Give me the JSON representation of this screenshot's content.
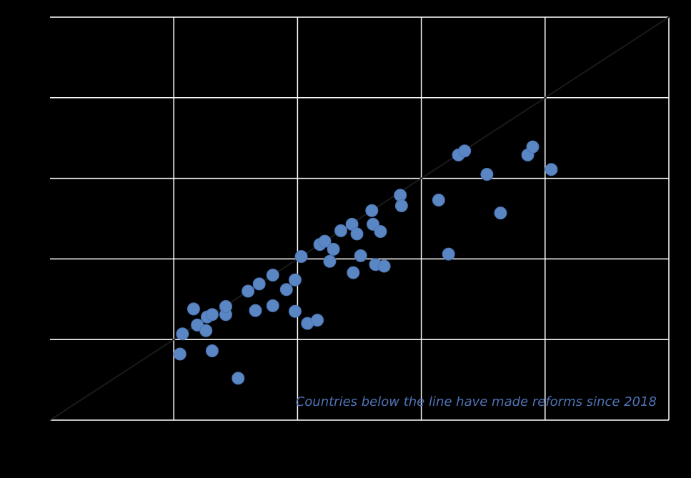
{
  "colors": {
    "background": "#000000",
    "grid": "#ffffff",
    "diagonal": "#1a1a1a",
    "point": "#5b86c4",
    "point_stroke": "#4a74b3",
    "annotation": "#4f72b5"
  },
  "chart_data": {
    "type": "scatter",
    "title": "",
    "xlabel": "",
    "ylabel": "",
    "xlim": [
      0,
      5
    ],
    "ylim": [
      0,
      5
    ],
    "grid": true,
    "reference_line": {
      "from": [
        0,
        0
      ],
      "to": [
        5,
        5
      ]
    },
    "annotation": "Countries below the line have made reforms since 2018",
    "series": [
      {
        "points": [
          {
            "x": 1.05,
            "y": 0.82
          },
          {
            "x": 1.07,
            "y": 1.07
          },
          {
            "x": 1.16,
            "y": 1.38
          },
          {
            "x": 1.19,
            "y": 1.18
          },
          {
            "x": 1.26,
            "y": 1.11
          },
          {
            "x": 1.27,
            "y": 1.28
          },
          {
            "x": 1.31,
            "y": 1.31
          },
          {
            "x": 1.31,
            "y": 0.86
          },
          {
            "x": 1.42,
            "y": 1.31
          },
          {
            "x": 1.42,
            "y": 1.41
          },
          {
            "x": 1.52,
            "y": 0.52
          },
          {
            "x": 1.6,
            "y": 1.6
          },
          {
            "x": 1.66,
            "y": 1.36
          },
          {
            "x": 1.69,
            "y": 1.69
          },
          {
            "x": 1.8,
            "y": 1.42
          },
          {
            "x": 1.8,
            "y": 1.8
          },
          {
            "x": 1.91,
            "y": 1.62
          },
          {
            "x": 1.98,
            "y": 1.35
          },
          {
            "x": 1.98,
            "y": 1.74
          },
          {
            "x": 2.03,
            "y": 2.03
          },
          {
            "x": 2.08,
            "y": 1.2
          },
          {
            "x": 2.16,
            "y": 1.24
          },
          {
            "x": 2.18,
            "y": 2.18
          },
          {
            "x": 2.22,
            "y": 2.22
          },
          {
            "x": 2.26,
            "y": 1.97
          },
          {
            "x": 2.29,
            "y": 2.12
          },
          {
            "x": 2.35,
            "y": 2.35
          },
          {
            "x": 2.44,
            "y": 2.43
          },
          {
            "x": 2.45,
            "y": 1.83
          },
          {
            "x": 2.48,
            "y": 2.31
          },
          {
            "x": 2.51,
            "y": 2.04
          },
          {
            "x": 2.6,
            "y": 2.6
          },
          {
            "x": 2.61,
            "y": 2.43
          },
          {
            "x": 2.63,
            "y": 1.93
          },
          {
            "x": 2.67,
            "y": 2.34
          },
          {
            "x": 2.7,
            "y": 1.91
          },
          {
            "x": 2.83,
            "y": 2.79
          },
          {
            "x": 2.84,
            "y": 2.66
          },
          {
            "x": 3.14,
            "y": 2.73
          },
          {
            "x": 3.22,
            "y": 2.06
          },
          {
            "x": 3.3,
            "y": 3.29
          },
          {
            "x": 3.35,
            "y": 3.34
          },
          {
            "x": 3.53,
            "y": 3.05
          },
          {
            "x": 3.64,
            "y": 2.57
          },
          {
            "x": 3.86,
            "y": 3.29
          },
          {
            "x": 3.9,
            "y": 3.39
          },
          {
            "x": 4.05,
            "y": 3.11
          }
        ]
      }
    ]
  }
}
